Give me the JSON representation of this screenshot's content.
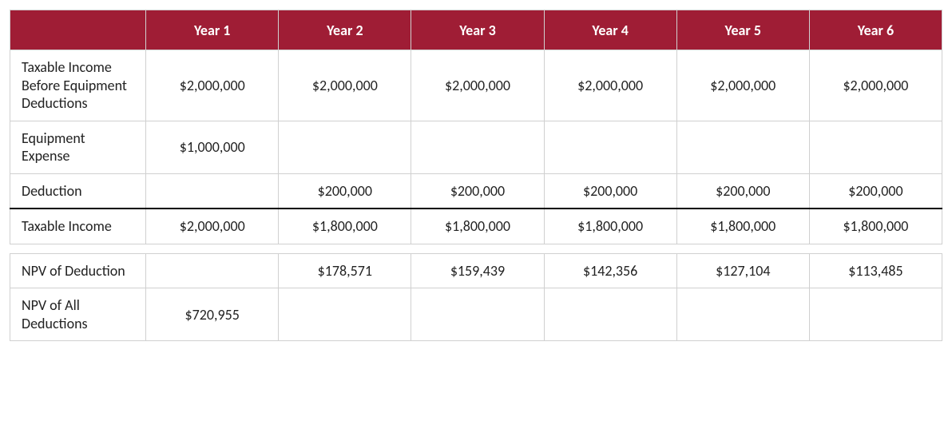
{
  "table": {
    "header_bg": "#9f1d35",
    "header_color": "#ffffff",
    "border_color": "#d0d0d0",
    "divider_color": "#000000",
    "font_family": "Calibri",
    "cell_fontsize": 18,
    "header_fontsize": 18,
    "columns": [
      "",
      "Year 1",
      "Year 2",
      "Year 3",
      "Year 4",
      "Year 5",
      "Year 6"
    ],
    "rows": [
      {
        "label": "Taxable Income Before Equipment Deductions",
        "cells": [
          "$2,000,000",
          "$2,000,000",
          "$2,000,000",
          "$2,000,000",
          "$2,000,000",
          "$2,000,000"
        ]
      },
      {
        "label": "Equipment Expense",
        "cells": [
          "$1,000,000",
          "",
          "",
          "",
          "",
          ""
        ]
      },
      {
        "label": "Deduction",
        "cells": [
          "",
          "$200,000",
          "$200,000",
          "$200,000",
          "$200,000",
          "$200,000"
        ]
      },
      {
        "label": "Taxable Income",
        "divider_above": true,
        "cells": [
          "$2,000,000",
          "$1,800,000",
          "$1,800,000",
          "$1,800,000",
          "$1,800,000",
          "$1,800,000"
        ]
      }
    ],
    "rows2": [
      {
        "label": "NPV of Deduction",
        "cells": [
          "",
          "$178,571",
          "$159,439",
          "$142,356",
          "$127,104",
          "$113,485"
        ]
      },
      {
        "label": "NPV of All Deductions",
        "cells": [
          "$720,955",
          "",
          "",
          "",
          "",
          ""
        ]
      }
    ]
  }
}
